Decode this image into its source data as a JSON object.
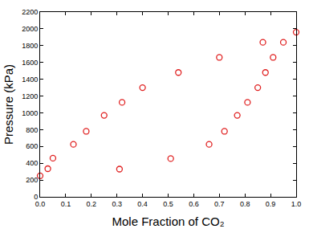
{
  "chart_data": {
    "type": "scatter",
    "x_label": "Mole Fraction of CO₂",
    "y_label": "Pressure (kPa)",
    "x": [
      0.0,
      0.03,
      0.05,
      0.13,
      0.18,
      0.25,
      0.32,
      0.4,
      0.54,
      0.7,
      0.87,
      1.0,
      0.31,
      0.51,
      0.66,
      0.72,
      0.77,
      0.81,
      0.85,
      0.88,
      0.91,
      0.95
    ],
    "values": [
      250,
      335,
      460,
      625,
      780,
      970,
      1125,
      1300,
      1480,
      1660,
      1840,
      1960,
      330,
      455,
      625,
      780,
      970,
      1125,
      1300,
      1480,
      1660,
      1840
    ],
    "color": "#e02020",
    "marker": "circle-open",
    "xlim": [
      0,
      1
    ],
    "xticks": [
      {
        "value": 0,
        "label": "0.0"
      },
      0.1,
      0.2,
      0.3,
      0.4,
      0.5,
      0.6,
      0.7,
      0.8,
      0.9,
      {
        "value": 1,
        "label": "1.0"
      }
    ],
    "ylim": [
      0,
      2200
    ],
    "yticks": [
      0,
      200,
      400,
      600,
      800,
      1000,
      1200,
      1400,
      1600,
      1800,
      2000,
      2200
    ],
    "grid": false
  }
}
